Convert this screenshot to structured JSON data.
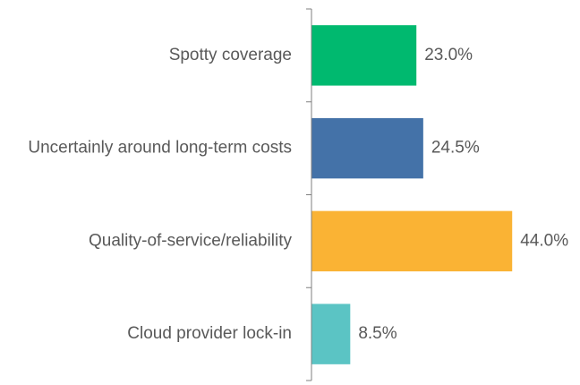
{
  "chart_data": {
    "type": "bar",
    "orientation": "horizontal",
    "title": "",
    "xlabel": "",
    "ylabel": "",
    "categories": [
      "Spotty coverage",
      "Uncertainly around long-term costs",
      "Quality-of-service/reliability",
      "Cloud provider lock-in"
    ],
    "values": [
      23.0,
      24.5,
      44.0,
      8.5
    ],
    "value_labels": [
      "23.0%",
      "24.5%",
      "44.0%",
      "8.5%"
    ],
    "colors": [
      "#00B96F",
      "#4472A8",
      "#FAB334",
      "#5BC4C4"
    ],
    "xlim": [
      0,
      52
    ],
    "grid": false,
    "legend": "none"
  }
}
